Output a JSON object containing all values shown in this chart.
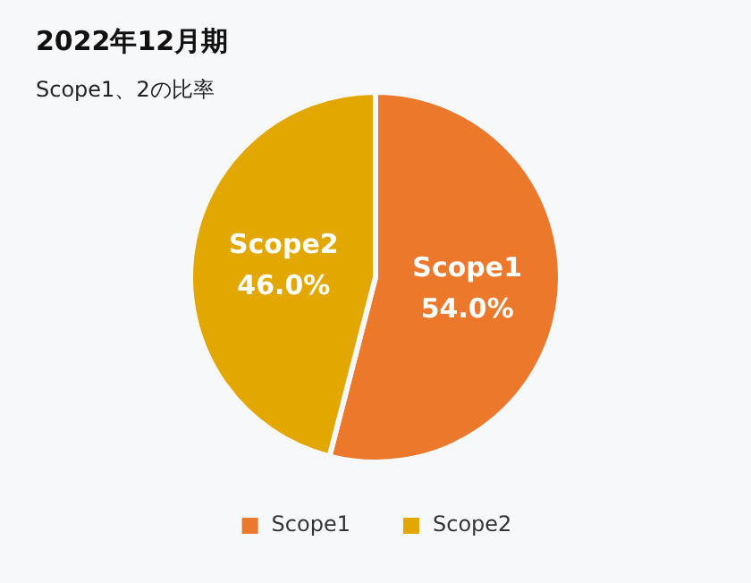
{
  "chart_data": {
    "type": "pie",
    "title": "2022年12月期",
    "subtitle": "Scope1、2の比率",
    "categories": [
      "Scope1",
      "Scope2"
    ],
    "values": [
      54.0,
      46.0
    ],
    "colors": [
      "#ec782c",
      "#e2a700"
    ],
    "value_labels": [
      "54.0%",
      "46.0%"
    ],
    "legend": "bottom"
  }
}
